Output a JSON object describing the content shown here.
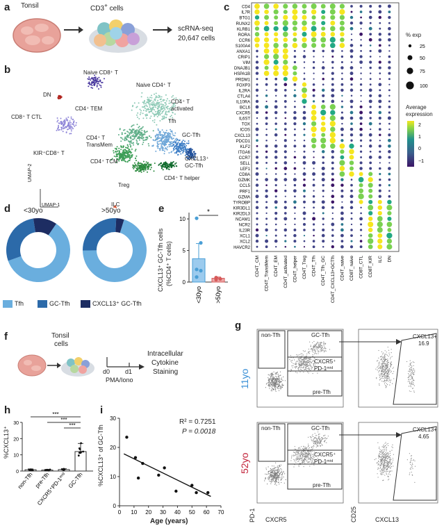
{
  "panel_a": {
    "label": "a",
    "tonsil": "Tonsil",
    "cd3_html": "CD3<sup>+</sup> cells",
    "scrna": "scRNA-seq",
    "cells": "20,647 cells"
  },
  "panel_b": {
    "label": "b",
    "clusters": {
      "naive_cd8": "Naive CD8⁺ T",
      "dn": "DN",
      "cd8_ctl": "CD8⁺ T CTL",
      "kir_cd8": "KIR⁺CD8⁺ T",
      "naive_cd4": "Naive CD4⁺ T",
      "cd4_tem": "CD4⁺ TEM",
      "cd4_activated_1": "CD4⁺ T",
      "cd4_activated_2": "activated",
      "tfh": "Tfh",
      "gc_tfh": "GC-Tfh",
      "transmem_1": "CD4⁺ T",
      "transmem_2": "TransMem",
      "cd4_tcm": "CD4⁺ TCM",
      "cxcl13_1": "CXCL13⁺",
      "cxcl13_2": "GC-Tfh",
      "treg": "Treg",
      "cd4_helper": "CD4⁺ T helper",
      "ilc": "ILC"
    },
    "umap1": "UMAP-1",
    "umap2": "UMAP-2"
  },
  "panel_c": {
    "label": "c",
    "genes": [
      "CD4",
      "IL7R",
      "BTG1",
      "RUNX2",
      "KLRB1",
      "RORA",
      "CCR6",
      "S100A4",
      "ANXA1",
      "CRIP1",
      "VIM",
      "DNAJB1",
      "HSPA1B",
      "PRDM1",
      "FOXP3",
      "IL2RA",
      "CTLA4",
      "IL10RA",
      "BCL6",
      "CXCR5",
      "IL6ST",
      "TOX",
      "ICOS",
      "CXCL13",
      "PDCD1",
      "KLF2",
      "ITGA6",
      "CCR7",
      "SELL",
      "LEF1",
      "CD8A",
      "GZMK",
      "CCL5",
      "PRF1",
      "GZMA",
      "TYROBP",
      "KIR3DL1",
      "KIR2DL3",
      "NCAM1",
      "NCR2",
      "IL23R",
      "XCL1",
      "XCL2",
      "HAVCR2"
    ],
    "groups": [
      "CD4T_CM",
      "CD4T_TransMem",
      "CD4T_EM",
      "CD4T_activated",
      "CD4T_helper",
      "CD4T_Treg",
      "CD4T_Tfh",
      "CD4T_Tfh_GC",
      "CD4T_CXCL13+GCTfh",
      "CD4T_naive",
      "CD8T_naive",
      "CD8T_CTL",
      "CD8T_KIR",
      "ILC",
      "DN"
    ],
    "pct_title": "% exp",
    "pct_values": [
      "25",
      "50",
      "75",
      "100"
    ],
    "expr_title_1": "Average",
    "expr_title_2": "expression",
    "expr_ticks": [
      "2",
      "1",
      "0",
      "−1"
    ]
  },
  "panel_d": {
    "label": "d",
    "title_young": "<30yo",
    "title_old": ">50yo",
    "legend_tfh": "Tfh",
    "legend_gc": "GC-Tfh",
    "legend_cxcl13": "CXCL13⁺ GC-Tfh",
    "colors": {
      "tfh": "#6aaede",
      "gc": "#2c6aa9",
      "cxcl13": "#1d2d62"
    }
  },
  "panel_e": {
    "label": "e",
    "ylabel_1": "CXCL13⁺ GC-Tfh cells",
    "ylabel_2": "(%CD4⁺ T cells)",
    "yticks": [
      "0",
      "5",
      "10"
    ],
    "xticks": [
      "<30yo",
      ">50yo"
    ],
    "sig": "*"
  },
  "panel_f": {
    "label": "f",
    "tonsil_1": "Tonsil",
    "tonsil_2": "cells",
    "d0": "d0",
    "d1": "d1",
    "stim": "PMA/Iono",
    "readout_1": "Intracellular",
    "readout_2": "Cytokine",
    "readout_3": "Staining"
  },
  "panel_g": {
    "label": "g",
    "age_young": "11yo",
    "age_old": "52yo",
    "gates": {
      "non_tfh": "non-Tfh",
      "gc_tfh": "GC-Tfh",
      "cxcr5_1": "CXCR5⁺",
      "cxcr5_2": "PD-1ᵐⁱᵈ",
      "pre_tfh": "pre-Tfh"
    },
    "cxcl13_gate": "CXCL13+",
    "pct_young": "16.9",
    "pct_old": "4.65",
    "x1": "CXCR5",
    "y1": "PD-1",
    "x2": "CXCL13",
    "y2": "CD25"
  },
  "panel_h": {
    "label": "h",
    "ylabel": "%CXCL13⁺",
    "yticks": [
      "0",
      "10",
      "20",
      "30"
    ],
    "xticks": [
      "non-Tfh",
      "pre-Tfh",
      "CXCR5⁺PD-1ᵐⁱᵈ",
      "GC-Tfh"
    ],
    "sig": "***"
  },
  "panel_i": {
    "label": "i",
    "ylabel": "%CXCL13⁺ of GC-Tfh",
    "xlabel": "Age (years)",
    "r2": "R² = 0.7251",
    "p": "P = 0.0018",
    "xticks": [
      "0",
      "10",
      "20",
      "30",
      "40",
      "50",
      "60",
      "70"
    ],
    "yticks": [
      "0",
      "10",
      "20",
      "30"
    ]
  },
  "chart_data": [
    {
      "type": "scatter",
      "panel": "i",
      "x": [
        5,
        11,
        13,
        16,
        27,
        31,
        39,
        50,
        53,
        61
      ],
      "y": [
        23.5,
        16.5,
        9.5,
        14.5,
        10.5,
        13,
        5,
        7,
        4.5,
        4.5
      ],
      "xlabel": "Age (years)",
      "ylabel": "%CXCL13⁺ of GC-Tfh",
      "xlim": [
        0,
        70
      ],
      "ylim": [
        0,
        30
      ],
      "trend": [
        [
          3,
          17.8
        ],
        [
          63,
          3.2
        ]
      ]
    },
    {
      "type": "bar",
      "panel": "e",
      "categories": [
        "<30yo",
        ">50yo"
      ],
      "values": [
        3.7,
        0.6
      ],
      "errors": [
        2.4,
        0.2
      ],
      "points": [
        [
          0.8,
          1.8,
          2.0,
          6.2,
          10.1
        ],
        [
          0.4,
          0.5,
          0.7
        ]
      ],
      "ylim": [
        0,
        11
      ]
    },
    {
      "type": "bar",
      "panel": "h",
      "categories": [
        "non-Tfh",
        "pre-Tfh",
        "CXCR5⁺PD-1ᵐⁱᵈ",
        "GC-Tfh"
      ],
      "values": [
        0.8,
        0.6,
        0.9,
        12.0
      ],
      "errors": [
        0.5,
        0.4,
        0.5,
        5.0
      ],
      "ylim": [
        0,
        30
      ]
    },
    {
      "type": "pie",
      "panel": "d",
      "series": [
        {
          "name": "<30yo",
          "values": [
            60,
            28,
            12
          ]
        },
        {
          "name": ">50yo",
          "values": [
            70,
            26,
            4
          ]
        }
      ],
      "categories": [
        "Tfh",
        "GC-Tfh",
        "CXCL13⁺ GC-Tfh"
      ]
    }
  ]
}
